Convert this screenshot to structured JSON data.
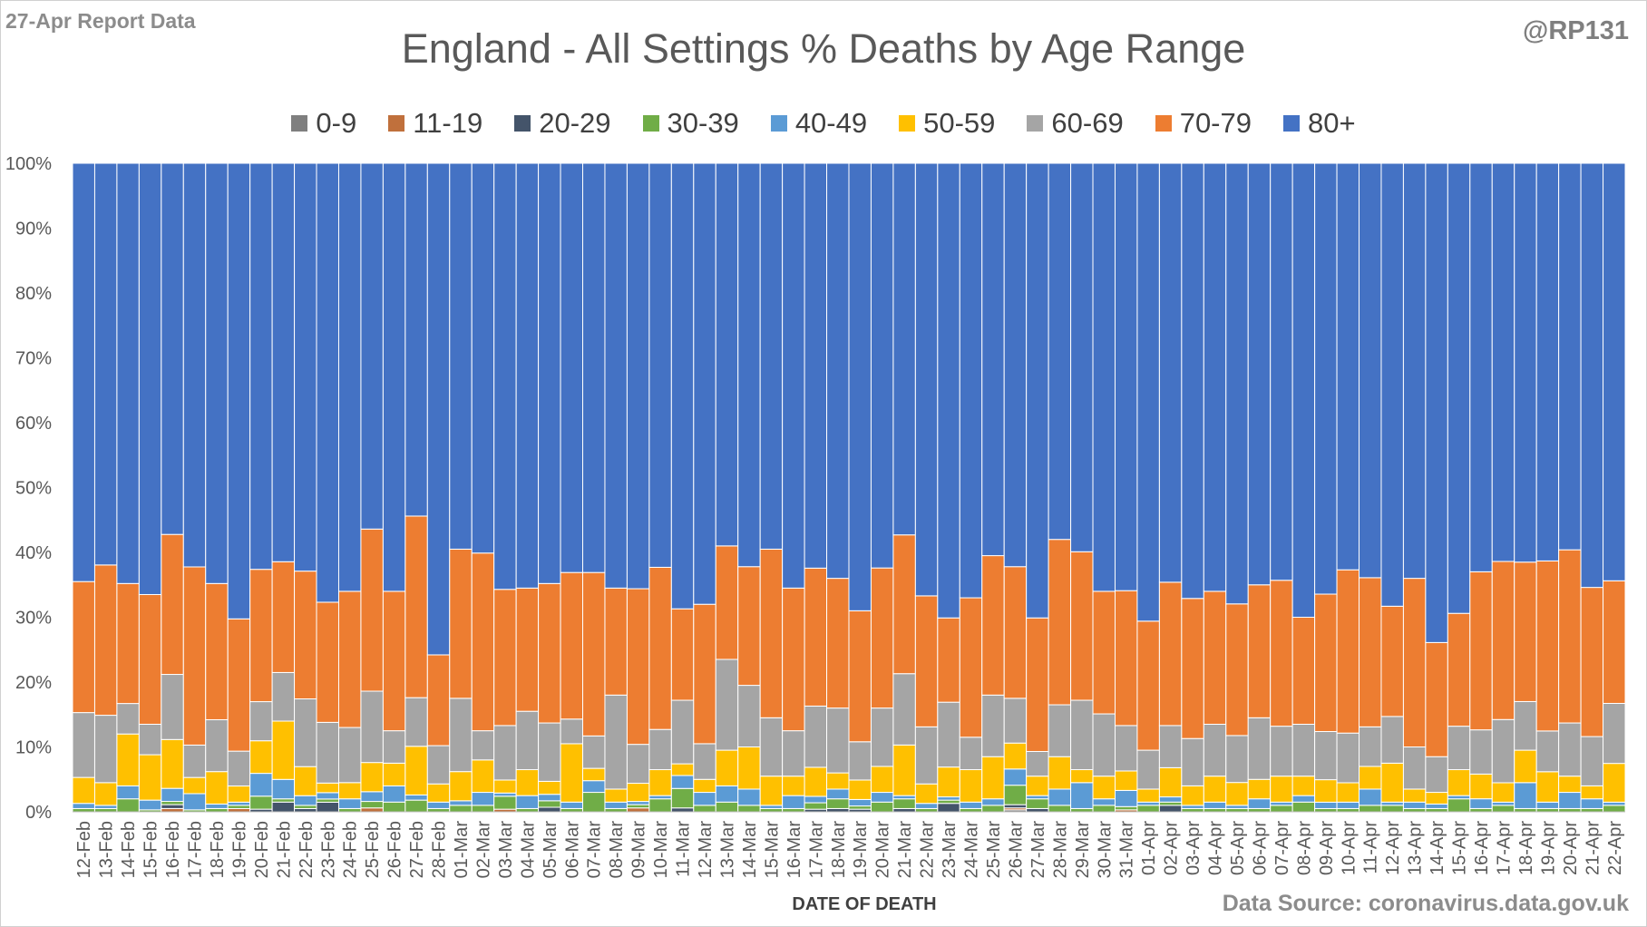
{
  "header": {
    "report_tag": "27-Apr Report Data",
    "handle": "@RP131",
    "source": "Data Source: coronavirus.data.gov.uk"
  },
  "chart_data": {
    "type": "bar",
    "stacked": "percent",
    "title": "England - All Settings % Deaths by Age Range",
    "xlabel": "DATE OF DEATH",
    "ylabel": "",
    "ylim": [
      0,
      100
    ],
    "yticks": [
      "0%",
      "10%",
      "20%",
      "30%",
      "40%",
      "50%",
      "60%",
      "70%",
      "80%",
      "90%",
      "100%"
    ],
    "grid": false,
    "legend_position": "top",
    "categories": [
      "12-Feb",
      "13-Feb",
      "14-Feb",
      "15-Feb",
      "16-Feb",
      "17-Feb",
      "18-Feb",
      "19-Feb",
      "20-Feb",
      "21-Feb",
      "22-Feb",
      "23-Feb",
      "24-Feb",
      "25-Feb",
      "26-Feb",
      "27-Feb",
      "28-Feb",
      "01-Mar",
      "02-Mar",
      "03-Mar",
      "04-Mar",
      "05-Mar",
      "06-Mar",
      "07-Mar",
      "08-Mar",
      "09-Mar",
      "10-Mar",
      "11-Mar",
      "12-Mar",
      "13-Mar",
      "14-Mar",
      "15-Mar",
      "16-Mar",
      "17-Mar",
      "18-Mar",
      "19-Mar",
      "20-Mar",
      "21-Mar",
      "22-Mar",
      "23-Mar",
      "24-Mar",
      "25-Mar",
      "26-Mar",
      "27-Mar",
      "28-Mar",
      "29-Mar",
      "30-Mar",
      "31-Mar",
      "01-Apr",
      "02-Apr",
      "03-Apr",
      "04-Apr",
      "05-Apr",
      "06-Apr",
      "07-Apr",
      "08-Apr",
      "09-Apr",
      "10-Apr",
      "11-Apr",
      "12-Apr",
      "13-Apr",
      "14-Apr",
      "15-Apr",
      "16-Apr",
      "17-Apr",
      "18-Apr",
      "19-Apr",
      "20-Apr",
      "21-Apr",
      "22-Apr"
    ],
    "series": [
      {
        "name": "0-9",
        "color": "#7f7f7f",
        "values": [
          0,
          0,
          0,
          0,
          0,
          0,
          0,
          0,
          0,
          0,
          0,
          0,
          0,
          0,
          0,
          0,
          0,
          0,
          0,
          0,
          0,
          0,
          0,
          0,
          0,
          0,
          0,
          0,
          0,
          0,
          0,
          0,
          0,
          0,
          0,
          0,
          0,
          0,
          0,
          0,
          0,
          0,
          0.3,
          0,
          0,
          0,
          0,
          0,
          0,
          0,
          0,
          0,
          0,
          0,
          0,
          0,
          0,
          0,
          0,
          0,
          0,
          0,
          0,
          0,
          0,
          0,
          0,
          0,
          0,
          0
        ]
      },
      {
        "name": "11-19",
        "color": "#c0703c",
        "values": [
          0,
          0,
          0,
          0,
          0.5,
          0,
          0,
          0.5,
          0,
          0,
          0,
          0,
          0,
          0.6,
          0,
          0,
          0,
          0,
          0,
          0.4,
          0,
          0,
          0,
          0,
          0,
          0.6,
          0,
          0,
          0,
          0,
          0,
          0,
          0,
          0,
          0,
          0,
          0,
          0,
          0,
          0,
          0,
          0,
          0.3,
          0,
          0,
          0,
          0,
          0.3,
          0,
          0,
          0,
          0,
          0,
          0,
          0,
          0,
          0,
          0,
          0,
          0,
          0,
          0,
          0,
          0,
          0,
          0,
          0,
          0,
          0,
          0
        ]
      },
      {
        "name": "20-29",
        "color": "#44546a",
        "values": [
          0,
          0,
          0,
          0,
          0.6,
          0,
          0,
          0,
          0.4,
          1.5,
          0.5,
          1.5,
          0,
          0,
          0,
          0,
          0,
          0,
          0,
          0,
          0,
          0.7,
          0,
          0,
          0,
          0,
          0,
          0.6,
          0,
          0,
          0,
          0,
          0,
          0.4,
          0.5,
          0.4,
          0,
          0.5,
          0,
          1.3,
          0,
          0,
          0.5,
          0.5,
          0,
          0,
          0,
          0,
          0,
          1.0,
          0,
          0,
          0,
          0,
          0,
          0,
          0,
          0,
          0,
          0,
          0,
          0,
          0,
          0,
          0,
          0,
          0,
          0,
          0,
          0
        ]
      },
      {
        "name": "30-39",
        "color": "#70ad47",
        "values": [
          0.5,
          0.5,
          2.0,
          0.3,
          0.5,
          0.3,
          0.5,
          0.5,
          2.0,
          0.5,
          0.5,
          0.5,
          0.5,
          1.0,
          1.5,
          1.8,
          0.5,
          1.0,
          1.0,
          2.0,
          0.5,
          1.0,
          0.5,
          3.0,
          0.5,
          0.5,
          2.0,
          3.0,
          1.0,
          1.5,
          1.0,
          0.5,
          0.5,
          1.0,
          1.5,
          0.5,
          1.5,
          1.5,
          0.5,
          0.5,
          0.5,
          1.0,
          3.0,
          1.5,
          1.0,
          0.5,
          1.0,
          0.5,
          1.0,
          0.5,
          0.5,
          0.5,
          0.5,
          0.5,
          1.0,
          1.5,
          0.5,
          0.5,
          1.0,
          1.0,
          0.5,
          0.5,
          2.0,
          0.5,
          1.0,
          0.5,
          0.5,
          0.5,
          0.5,
          1.0
        ]
      },
      {
        "name": "40-49",
        "color": "#5b9bd5",
        "values": [
          0.8,
          0.5,
          2.0,
          1.5,
          2.0,
          2.5,
          0.7,
          0.5,
          3.5,
          3.0,
          1.5,
          1.0,
          1.5,
          1.5,
          2.5,
          0.8,
          1.0,
          0.7,
          2.0,
          0.5,
          2.0,
          1.0,
          1.0,
          1.8,
          1.0,
          0.5,
          0.5,
          2.0,
          2.0,
          2.5,
          2.5,
          0.5,
          2.0,
          1.0,
          1.5,
          1.0,
          1.5,
          0.5,
          0.8,
          0.5,
          1.0,
          1.0,
          2.5,
          0.5,
          2.5,
          4.0,
          1.0,
          2.5,
          0.5,
          0.8,
          0.5,
          1.0,
          0.5,
          1.5,
          0.5,
          1.0,
          1.0,
          1.0,
          2.5,
          0.5,
          1.0,
          0.7,
          0.5,
          1.5,
          0.5,
          4.0,
          1.0,
          2.5,
          1.5,
          0.5
        ]
      },
      {
        "name": "50-59",
        "color": "#ffc000",
        "values": [
          4.0,
          3.5,
          8.0,
          7.0,
          7.5,
          2.5,
          5.0,
          2.5,
          5.0,
          9.0,
          4.5,
          1.5,
          2.5,
          4.5,
          3.5,
          7.5,
          2.8,
          4.5,
          5.0,
          2.0,
          4.0,
          2.0,
          9.0,
          1.9,
          2.0,
          2.8,
          4.0,
          1.8,
          2.0,
          5.5,
          6.5,
          4.5,
          3.0,
          4.5,
          2.5,
          3.0,
          4.0,
          7.8,
          3.0,
          4.6,
          5.0,
          6.5,
          4.0,
          3.0,
          5.0,
          2.0,
          3.5,
          3.0,
          2.0,
          4.5,
          3.0,
          4.0,
          3.5,
          3.0,
          4.0,
          3.0,
          3.5,
          3.0,
          3.5,
          6.0,
          2.0,
          1.8,
          4.0,
          3.8,
          3.0,
          5.0,
          4.7,
          2.5,
          2.0,
          6.0
        ]
      },
      {
        "name": "60-69",
        "color": "#a5a5a5",
        "values": [
          10.0,
          10.4,
          4.7,
          4.7,
          10.0,
          5.0,
          8.0,
          5.4,
          6.0,
          7.5,
          10.5,
          9.5,
          8.5,
          11.0,
          5.0,
          7.5,
          5.9,
          11.3,
          4.5,
          8.4,
          9.0,
          9.0,
          3.8,
          5.0,
          14.5,
          6.0,
          6.2,
          9.8,
          5.5,
          14.0,
          9.5,
          9.0,
          7.0,
          9.5,
          10.0,
          5.9,
          9.0,
          11.0,
          8.8,
          10.0,
          5.0,
          9.5,
          6.9,
          3.8,
          8.0,
          10.7,
          9.6,
          7.0,
          6.0,
          6.5,
          7.3,
          8.0,
          7.2,
          9.5,
          7.7,
          8.0,
          7.5,
          7.7,
          6.1,
          7.2,
          6.5,
          5.5,
          6.7,
          6.8,
          9.8,
          7.5,
          6.3,
          8.2,
          7.6,
          9.3
        ]
      },
      {
        "name": "70-79",
        "color": "#ed7d31",
        "values": [
          20.2,
          23.2,
          18.5,
          20.0,
          21.5,
          27.5,
          21.0,
          20.5,
          20.3,
          17.1,
          19.8,
          18.8,
          21.0,
          25.0,
          21.5,
          28.0,
          14.0,
          23.0,
          27.4,
          21.0,
          19.0,
          21.5,
          22.6,
          25.2,
          16.5,
          24.0,
          25.0,
          14.1,
          21.5,
          17.5,
          18.3,
          26.0,
          22.0,
          21.4,
          20.0,
          20.2,
          21.6,
          21.4,
          20.2,
          13.0,
          21.5,
          21.5,
          20.3,
          20.6,
          25.5,
          22.9,
          18.9,
          20.8,
          19.9,
          22.1,
          21.6,
          20.5,
          20.2,
          20.5,
          22.5,
          16.5,
          21.4,
          25.3,
          23.0,
          17.0,
          26.0,
          17.6,
          17.4,
          24.3,
          24.5,
          21.5,
          26.3,
          26.7,
          23.0,
          19.0
        ]
      },
      {
        "name": "80+",
        "color": "#4472c4",
        "values": [
          64.5,
          62.0,
          64.8,
          66.5,
          57.0,
          62.3,
          64.8,
          70.6,
          62.3,
          61.5,
          63.2,
          68.7,
          66.0,
          56.4,
          66.0,
          54.4,
          75.8,
          59.5,
          60.1,
          65.7,
          65.5,
          64.8,
          63.1,
          63.1,
          65.5,
          65.6,
          62.3,
          68.7,
          68.0,
          59.0,
          62.2,
          59.5,
          65.5,
          62.8,
          64.0,
          69.0,
          62.4,
          57.3,
          66.7,
          70.1,
          67.0,
          60.5,
          62.2,
          70.1,
          58.0,
          59.9,
          66.0,
          65.9,
          70.6,
          64.6,
          67.1,
          66.0,
          67.6,
          65.0,
          64.3,
          70.0,
          67.1,
          63.0,
          63.9,
          68.3,
          64.0,
          73.9,
          69.4,
          62.8,
          61.7,
          61.5,
          61.5,
          59.6,
          65.4,
          64.7
        ]
      }
    ]
  }
}
